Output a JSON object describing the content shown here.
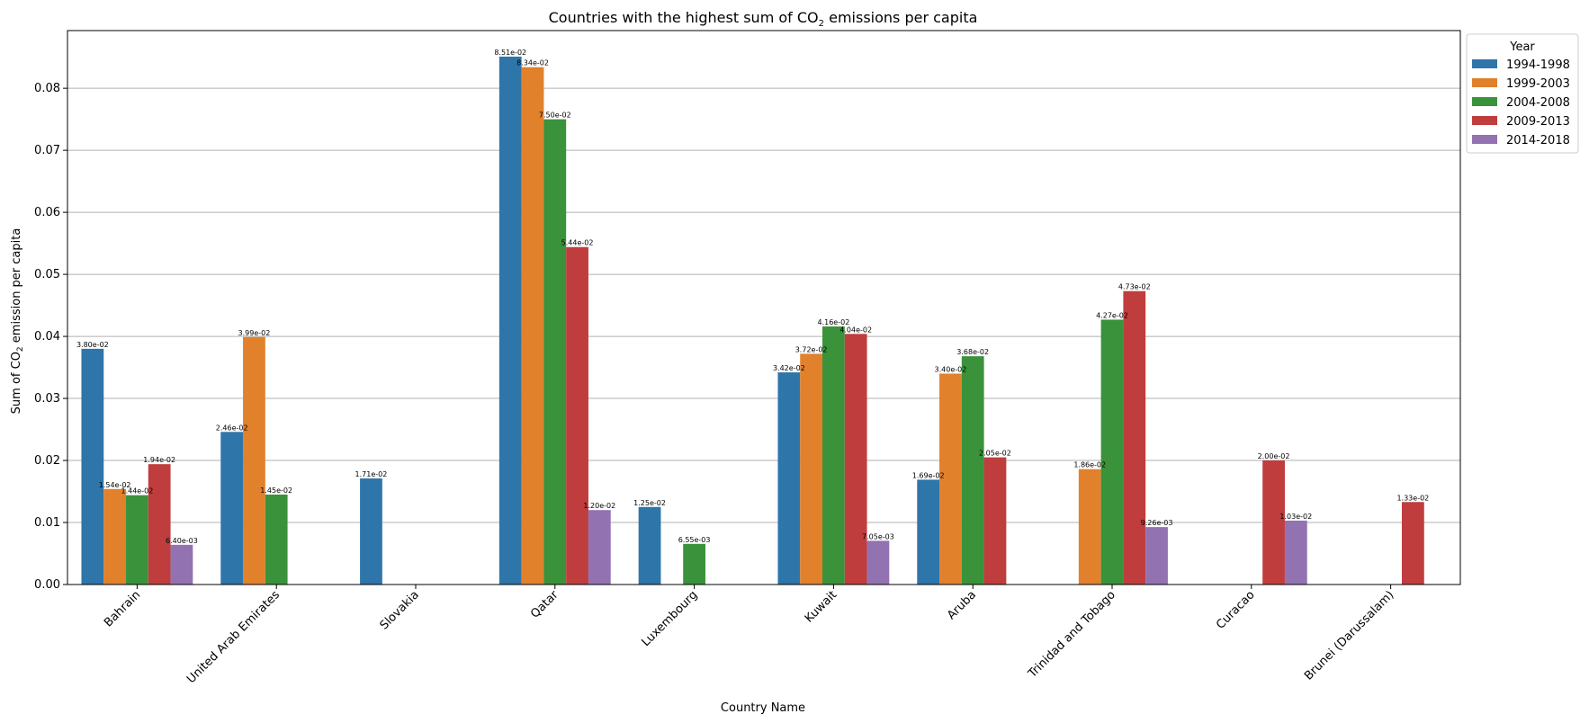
{
  "chart_data": {
    "type": "bar",
    "title": "Countries with the highest sum of CO",
    "title_subscript": "2",
    "title_suffix": " emissions per capita",
    "xlabel": "Country Name",
    "ylabel": "Sum of CO",
    "ylabel_subscript": "2",
    "ylabel_suffix": " emission per capita",
    "ylim": [
      0,
      0.0893
    ],
    "yticks": [
      0.0,
      0.01,
      0.02,
      0.03,
      0.04,
      0.05,
      0.06,
      0.07,
      0.08
    ],
    "ytick_labels": [
      "0.00",
      "0.01",
      "0.02",
      "0.03",
      "0.04",
      "0.05",
      "0.06",
      "0.07",
      "0.08"
    ],
    "grid": "horizontal",
    "legend_title": "Year",
    "legend_position": "upper right, outside plot",
    "categories": [
      "Bahrain",
      "United Arab Emirates",
      "Slovakia",
      "Qatar",
      "Luxembourg",
      "Kuwait",
      "Aruba",
      "Trinidad and Tobago",
      "Curacao",
      "Brunei (Darussalam)"
    ],
    "series": [
      {
        "name": "1994-1998",
        "color": "#2e75aa",
        "values": [
          0.038,
          0.0246,
          0.0171,
          0.0851,
          0.0125,
          0.0342,
          0.0169,
          null,
          null,
          null
        ],
        "labels": [
          "3.80e-02",
          "2.46e-02",
          "1.71e-02",
          "8.51e-02",
          "1.25e-02",
          "3.42e-02",
          "1.69e-02",
          null,
          null,
          null
        ]
      },
      {
        "name": "1999-2003",
        "color": "#e1812c",
        "values": [
          0.0154,
          0.0399,
          null,
          0.0834,
          null,
          0.0372,
          0.034,
          0.0186,
          null,
          null
        ],
        "labels": [
          "1.54e-02",
          "3.99e-02",
          null,
          "8.34e-02",
          null,
          "3.72e-02",
          "3.40e-02",
          "1.86e-02",
          null,
          null
        ]
      },
      {
        "name": "2004-2008",
        "color": "#3a923a",
        "values": [
          0.0144,
          0.0145,
          null,
          0.075,
          0.00655,
          0.0416,
          0.0368,
          0.0427,
          null,
          null
        ],
        "labels": [
          "1.44e-02",
          "1.45e-02",
          null,
          "7.50e-02",
          "6.55e-03",
          "4.16e-02",
          "3.68e-02",
          "4.27e-02",
          null,
          null
        ]
      },
      {
        "name": "2009-2013",
        "color": "#c03d3e",
        "values": [
          0.0194,
          null,
          null,
          0.0544,
          null,
          0.0404,
          0.0205,
          0.0473,
          0.02,
          0.0133
        ],
        "labels": [
          "1.94e-02",
          null,
          null,
          "5.44e-02",
          null,
          "4.04e-02",
          "2.05e-02",
          "4.73e-02",
          "2.00e-02",
          "1.33e-02"
        ]
      },
      {
        "name": "2014-2018",
        "color": "#9372b2",
        "values": [
          0.0064,
          null,
          null,
          0.012,
          null,
          0.00705,
          null,
          0.00926,
          0.0103,
          null
        ],
        "labels": [
          "6.40e-03",
          null,
          null,
          "1.20e-02",
          null,
          "7.05e-03",
          null,
          "9.26e-03",
          "1.03e-02",
          null
        ]
      }
    ]
  }
}
